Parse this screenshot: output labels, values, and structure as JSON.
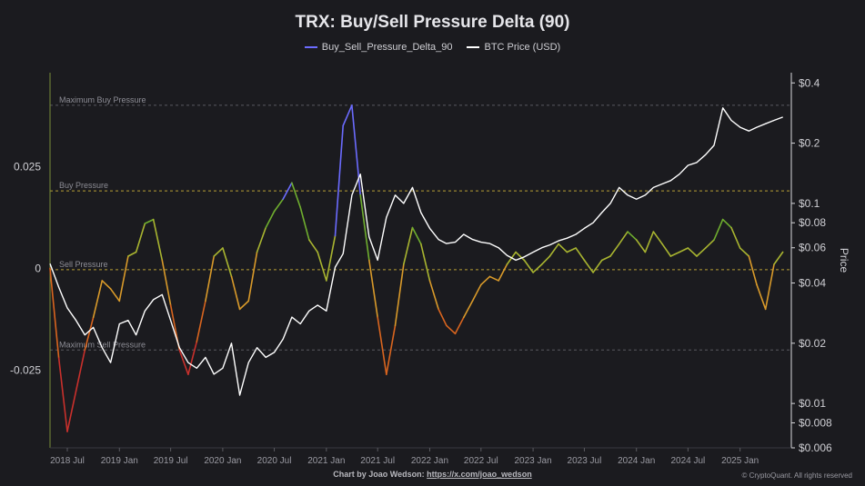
{
  "chart_data": {
    "type": "line",
    "title": "TRX: Buy/Sell Pressure Delta (90)",
    "series": [
      {
        "name": "Buy_Sell_Pressure_Delta_90",
        "color": "#6b6bff",
        "axis": "left",
        "x": [
          "2018-05-01",
          "2018-06-01",
          "2018-07-01",
          "2018-08-01",
          "2018-09-01",
          "2018-10-01",
          "2018-11-01",
          "2018-12-01",
          "2019-01-01",
          "2019-02-01",
          "2019-03-01",
          "2019-04-01",
          "2019-05-01",
          "2019-06-01",
          "2019-07-01",
          "2019-08-01",
          "2019-09-01",
          "2019-10-01",
          "2019-11-01",
          "2019-12-01",
          "2020-01-01",
          "2020-02-01",
          "2020-03-01",
          "2020-04-01",
          "2020-05-01",
          "2020-06-01",
          "2020-07-01",
          "2020-08-01",
          "2020-09-01",
          "2020-10-01",
          "2020-11-01",
          "2020-12-01",
          "2021-01-01",
          "2021-02-01",
          "2021-03-01",
          "2021-04-01",
          "2021-05-01",
          "2021-06-01",
          "2021-07-01",
          "2021-08-01",
          "2021-09-01",
          "2021-10-01",
          "2021-11-01",
          "2021-12-01",
          "2022-01-01",
          "2022-02-01",
          "2022-03-01",
          "2022-04-01",
          "2022-05-01",
          "2022-06-01",
          "2022-07-01",
          "2022-08-01",
          "2022-09-01",
          "2022-10-01",
          "2022-11-01",
          "2022-12-01",
          "2023-01-01",
          "2023-02-01",
          "2023-03-01",
          "2023-04-01",
          "2023-05-01",
          "2023-06-01",
          "2023-07-01",
          "2023-08-01",
          "2023-09-01",
          "2023-10-01",
          "2023-11-01",
          "2023-12-01",
          "2024-01-01",
          "2024-02-01",
          "2024-03-01",
          "2024-04-01",
          "2024-05-01",
          "2024-06-01",
          "2024-07-01",
          "2024-08-01",
          "2024-09-01",
          "2024-10-01",
          "2024-11-01",
          "2024-12-01",
          "2025-01-01",
          "2025-02-01",
          "2025-03-01",
          "2025-04-01",
          "2025-05-01",
          "2025-06-01"
        ],
        "values": [
          0.0,
          -0.022,
          -0.04,
          -0.03,
          -0.02,
          -0.012,
          -0.003,
          -0.005,
          -0.008,
          0.003,
          0.004,
          0.011,
          0.012,
          0.002,
          -0.009,
          -0.02,
          -0.026,
          -0.018,
          -0.008,
          0.003,
          0.005,
          -0.002,
          -0.01,
          -0.008,
          0.004,
          0.01,
          0.014,
          0.017,
          0.021,
          0.015,
          0.007,
          0.004,
          -0.003,
          0.008,
          0.035,
          0.04,
          0.018,
          0.002,
          -0.012,
          -0.026,
          -0.014,
          0.001,
          0.01,
          0.006,
          -0.003,
          -0.01,
          -0.014,
          -0.016,
          -0.012,
          -0.008,
          -0.004,
          -0.002,
          -0.003,
          0.001,
          0.004,
          0.002,
          -0.001,
          0.001,
          0.003,
          0.006,
          0.004,
          0.005,
          0.002,
          -0.001,
          0.002,
          0.003,
          0.006,
          0.009,
          0.007,
          0.004,
          0.009,
          0.006,
          0.003,
          0.004,
          0.005,
          0.003,
          0.005,
          0.007,
          0.012,
          0.01,
          0.005,
          0.003,
          -0.004,
          -0.01,
          0.001,
          0.004
        ]
      },
      {
        "name": "BTC Price (USD)",
        "color": "#ffffff",
        "axis": "right",
        "x": [
          "2018-05-01",
          "2018-06-01",
          "2018-07-01",
          "2018-08-01",
          "2018-09-01",
          "2018-10-01",
          "2018-11-01",
          "2018-12-01",
          "2019-01-01",
          "2019-02-01",
          "2019-03-01",
          "2019-04-01",
          "2019-05-01",
          "2019-06-01",
          "2019-07-01",
          "2019-08-01",
          "2019-09-01",
          "2019-10-01",
          "2019-11-01",
          "2019-12-01",
          "2020-01-01",
          "2020-02-01",
          "2020-03-01",
          "2020-04-01",
          "2020-05-01",
          "2020-06-01",
          "2020-07-01",
          "2020-08-01",
          "2020-09-01",
          "2020-10-01",
          "2020-11-01",
          "2020-12-01",
          "2021-01-01",
          "2021-02-01",
          "2021-03-01",
          "2021-04-01",
          "2021-05-01",
          "2021-06-01",
          "2021-07-01",
          "2021-08-01",
          "2021-09-01",
          "2021-10-01",
          "2021-11-01",
          "2021-12-01",
          "2022-01-01",
          "2022-02-01",
          "2022-03-01",
          "2022-04-01",
          "2022-05-01",
          "2022-06-01",
          "2022-07-01",
          "2022-08-01",
          "2022-09-01",
          "2022-10-01",
          "2022-11-01",
          "2022-12-01",
          "2023-01-01",
          "2023-02-01",
          "2023-03-01",
          "2023-04-01",
          "2023-05-01",
          "2023-06-01",
          "2023-07-01",
          "2023-08-01",
          "2023-09-01",
          "2023-10-01",
          "2023-11-01",
          "2023-12-01",
          "2024-01-01",
          "2024-02-01",
          "2024-03-01",
          "2024-04-01",
          "2024-05-01",
          "2024-06-01",
          "2024-07-01",
          "2024-08-01",
          "2024-09-01",
          "2024-10-01",
          "2024-11-01",
          "2024-12-01",
          "2025-01-01",
          "2025-02-01",
          "2025-03-01",
          "2025-04-01",
          "2025-05-01",
          "2025-06-01"
        ],
        "values": [
          0.05,
          0.038,
          0.03,
          0.026,
          0.022,
          0.024,
          0.019,
          0.016,
          0.025,
          0.026,
          0.022,
          0.029,
          0.033,
          0.035,
          0.026,
          0.019,
          0.016,
          0.015,
          0.017,
          0.014,
          0.015,
          0.02,
          0.011,
          0.016,
          0.019,
          0.017,
          0.018,
          0.021,
          0.027,
          0.025,
          0.029,
          0.031,
          0.029,
          0.048,
          0.056,
          0.11,
          0.14,
          0.068,
          0.052,
          0.085,
          0.11,
          0.1,
          0.12,
          0.09,
          0.075,
          0.066,
          0.063,
          0.064,
          0.07,
          0.066,
          0.064,
          0.063,
          0.06,
          0.055,
          0.052,
          0.054,
          0.057,
          0.06,
          0.062,
          0.065,
          0.067,
          0.07,
          0.075,
          0.08,
          0.09,
          0.1,
          0.12,
          0.11,
          0.105,
          0.11,
          0.12,
          0.125,
          0.13,
          0.14,
          0.155,
          0.16,
          0.175,
          0.195,
          0.3,
          0.26,
          0.24,
          0.23,
          0.24,
          0.25,
          0.26,
          0.27
        ]
      }
    ],
    "yaxis_left": {
      "ticks": [
        0.025,
        0,
        -0.025
      ],
      "tick_labels": [
        "0.025",
        "0",
        "-0.025"
      ],
      "range": [
        -0.044,
        0.048
      ]
    },
    "yaxis_right": {
      "label": "Price",
      "scale": "log",
      "ticks": [
        0.4,
        0.2,
        0.1,
        0.08,
        0.06,
        0.04,
        0.02,
        0.01,
        0.008,
        0.006
      ],
      "tick_labels": [
        "$0.4",
        "$0.2",
        "$0.1",
        "$0.08",
        "$0.06",
        "$0.04",
        "$0.02",
        "$0.01",
        "$0.008",
        "$0.006"
      ],
      "range": [
        0.006,
        0.45
      ]
    },
    "xaxis": {
      "tick_labels": [
        "2018 Jul",
        "2019 Jan",
        "2019 Jul",
        "2020 Jan",
        "2020 Jul",
        "2021 Jan",
        "2021 Jul",
        "2022 Jan",
        "2022 Jul",
        "2023 Jan",
        "2023 Jul",
        "2024 Jan",
        "2024 Jul",
        "2025 Jan"
      ],
      "tick_dates": [
        "2018-07-01",
        "2019-01-01",
        "2019-07-01",
        "2020-01-01",
        "2020-07-01",
        "2021-01-01",
        "2021-07-01",
        "2022-01-01",
        "2022-07-01",
        "2023-01-01",
        "2023-07-01",
        "2024-01-01",
        "2024-07-01",
        "2025-01-01"
      ],
      "range": [
        "2018-05-01",
        "2025-07-01"
      ]
    },
    "reference_lines": [
      {
        "label": "Maximum Buy Pressure",
        "value": 0.04,
        "color": "#5a5a60"
      },
      {
        "label": "Buy Pressure",
        "value": 0.019,
        "color": "#b8a035"
      },
      {
        "label": "Sell Pressure",
        "value": -0.0003,
        "color": "#b8a035"
      },
      {
        "label": "Maximum Sell Pressure",
        "value": -0.02,
        "color": "#5a5a60"
      }
    ],
    "legend_position": "top-center",
    "grid": false
  },
  "footer": {
    "credit_prefix": "Chart by Joao Wedson:",
    "credit_link": "https://x.com/joao_wedson",
    "copyright": "© CryptoQuant. All rights reserved"
  }
}
